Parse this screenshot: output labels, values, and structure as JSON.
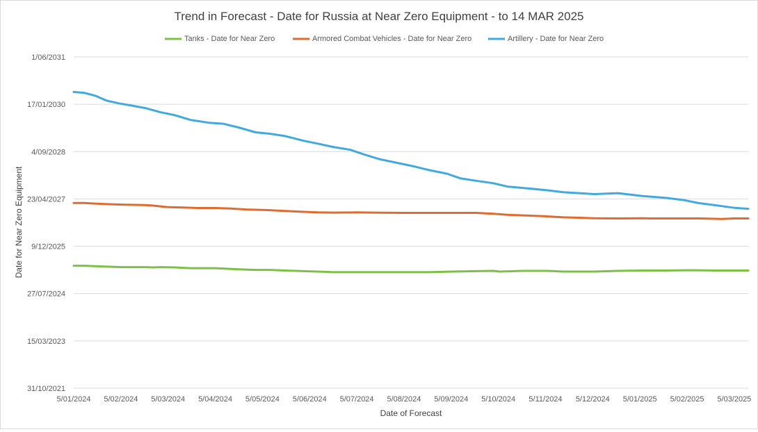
{
  "chart_data": {
    "type": "line",
    "title": "Trend in Forecast - Date for Russia at Near Zero Equipment - to 14 MAR 2025",
    "xlabel": "Date of Forecast",
    "ylabel": "Date for Near Zero Equipment",
    "legend_position": "top",
    "grid": true,
    "x_ticks": [
      "5/01/2024",
      "5/02/2024",
      "5/03/2024",
      "5/04/2024",
      "5/05/2024",
      "5/06/2024",
      "5/07/2024",
      "5/08/2024",
      "5/09/2024",
      "5/10/2024",
      "5/11/2024",
      "5/12/2024",
      "5/01/2025",
      "5/02/2025",
      "5/03/2025"
    ],
    "y_ticks": [
      "31/10/2021",
      "15/03/2023",
      "27/07/2024",
      "9/12/2025",
      "23/04/2027",
      "4/09/2028",
      "17/01/2030",
      "1/06/2031"
    ],
    "xlim": [
      "2024-01-05",
      "2025-03-14"
    ],
    "ylim": [
      "2021-10-31",
      "2031-06-01"
    ],
    "series": [
      {
        "name": "Tanks - Date for Near Zero",
        "color": "#7CC045",
        "points": [
          [
            "2024-01-05",
            "2025-05-17"
          ],
          [
            "2024-01-12",
            "2025-05-17"
          ],
          [
            "2024-01-26",
            "2025-05-08"
          ],
          [
            "2024-02-05",
            "2025-05-03"
          ],
          [
            "2024-02-20",
            "2025-05-03"
          ],
          [
            "2024-02-25",
            "2025-04-30"
          ],
          [
            "2024-03-01",
            "2025-05-03"
          ],
          [
            "2024-03-10",
            "2025-04-30"
          ],
          [
            "2024-03-20",
            "2025-04-22"
          ],
          [
            "2024-04-05",
            "2025-04-22"
          ],
          [
            "2024-04-20",
            "2025-04-10"
          ],
          [
            "2024-05-01",
            "2025-04-03"
          ],
          [
            "2024-05-10",
            "2025-04-03"
          ],
          [
            "2024-05-20",
            "2025-03-28"
          ],
          [
            "2024-06-01",
            "2025-03-21"
          ],
          [
            "2024-06-15",
            "2025-03-14"
          ],
          [
            "2024-06-20",
            "2025-03-10"
          ],
          [
            "2024-07-05",
            "2025-03-10"
          ],
          [
            "2024-07-20",
            "2025-03-10"
          ],
          [
            "2024-08-05",
            "2025-03-10"
          ],
          [
            "2024-08-20",
            "2025-03-10"
          ],
          [
            "2024-09-05",
            "2025-03-17"
          ],
          [
            "2024-09-20",
            "2025-03-21"
          ],
          [
            "2024-10-01",
            "2025-03-24"
          ],
          [
            "2024-10-05",
            "2025-03-17"
          ],
          [
            "2024-10-20",
            "2025-03-24"
          ],
          [
            "2024-11-05",
            "2025-03-24"
          ],
          [
            "2024-11-15",
            "2025-03-17"
          ],
          [
            "2024-12-05",
            "2025-03-17"
          ],
          [
            "2024-12-20",
            "2025-03-24"
          ],
          [
            "2025-01-05",
            "2025-03-28"
          ],
          [
            "2025-01-20",
            "2025-03-28"
          ],
          [
            "2025-02-01",
            "2025-03-31"
          ],
          [
            "2025-02-10",
            "2025-03-31"
          ],
          [
            "2025-02-20",
            "2025-03-28"
          ],
          [
            "2025-03-14",
            "2025-03-28"
          ]
        ]
      },
      {
        "name": "Armored Combat Vehicles - Date for Near Zero",
        "color": "#E06B2E",
        "points": [
          [
            "2024-01-05",
            "2027-03-11"
          ],
          [
            "2024-01-12",
            "2027-03-11"
          ],
          [
            "2024-01-26",
            "2027-02-27"
          ],
          [
            "2024-02-05",
            "2027-02-22"
          ],
          [
            "2024-02-20",
            "2027-02-17"
          ],
          [
            "2024-02-25",
            "2027-02-12"
          ],
          [
            "2024-03-05",
            "2027-01-27"
          ],
          [
            "2024-03-15",
            "2027-01-22"
          ],
          [
            "2024-03-25",
            "2027-01-17"
          ],
          [
            "2024-04-05",
            "2027-01-17"
          ],
          [
            "2024-04-15",
            "2027-01-12"
          ],
          [
            "2024-04-25",
            "2027-01-02"
          ],
          [
            "2024-05-05",
            "2026-12-28"
          ],
          [
            "2024-05-10",
            "2026-12-25"
          ],
          [
            "2024-05-20",
            "2026-12-17"
          ],
          [
            "2024-06-01",
            "2026-12-08"
          ],
          [
            "2024-06-10",
            "2026-12-02"
          ],
          [
            "2024-06-20",
            "2026-11-30"
          ],
          [
            "2024-07-05",
            "2026-12-02"
          ],
          [
            "2024-07-15",
            "2026-11-30"
          ],
          [
            "2024-08-05",
            "2026-11-27"
          ],
          [
            "2024-08-20",
            "2026-11-27"
          ],
          [
            "2024-09-05",
            "2026-11-27"
          ],
          [
            "2024-09-20",
            "2026-11-27"
          ],
          [
            "2024-10-01",
            "2026-11-17"
          ],
          [
            "2024-10-10",
            "2026-11-07"
          ],
          [
            "2024-10-20",
            "2026-10-31"
          ],
          [
            "2024-11-01",
            "2026-10-24"
          ],
          [
            "2024-11-15",
            "2026-10-11"
          ],
          [
            "2024-11-25",
            "2026-10-06"
          ],
          [
            "2024-12-05",
            "2026-10-01"
          ],
          [
            "2024-12-20",
            "2026-09-29"
          ],
          [
            "2025-01-05",
            "2026-10-01"
          ],
          [
            "2025-01-10",
            "2026-09-29"
          ],
          [
            "2025-01-25",
            "2026-09-29"
          ],
          [
            "2025-02-10",
            "2026-09-29"
          ],
          [
            "2025-02-25",
            "2026-09-24"
          ],
          [
            "2025-03-05",
            "2026-09-29"
          ],
          [
            "2025-03-14",
            "2026-09-29"
          ]
        ]
      },
      {
        "name": "Artillery - Date for Near Zero",
        "color": "#3FA9E0",
        "points": [
          [
            "2024-01-05",
            "2030-05-27"
          ],
          [
            "2024-01-12",
            "2030-05-17"
          ],
          [
            "2024-01-19",
            "2030-04-17"
          ],
          [
            "2024-01-26",
            "2030-02-26"
          ],
          [
            "2024-02-03",
            "2030-01-27"
          ],
          [
            "2024-02-10",
            "2030-01-07"
          ],
          [
            "2024-02-20",
            "2029-12-08"
          ],
          [
            "2024-03-01",
            "2029-10-24"
          ],
          [
            "2024-03-10",
            "2029-09-24"
          ],
          [
            "2024-03-20",
            "2029-08-05"
          ],
          [
            "2024-04-01",
            "2029-07-06"
          ],
          [
            "2024-04-10",
            "2029-06-26"
          ],
          [
            "2024-04-20",
            "2029-05-17"
          ],
          [
            "2024-05-01",
            "2029-03-27"
          ],
          [
            "2024-05-10",
            "2029-03-12"
          ],
          [
            "2024-05-20",
            "2029-02-15"
          ],
          [
            "2024-06-01",
            "2028-12-27"
          ],
          [
            "2024-06-10",
            "2028-11-27"
          ],
          [
            "2024-06-20",
            "2028-10-23"
          ],
          [
            "2024-07-01",
            "2028-09-23"
          ],
          [
            "2024-07-10",
            "2028-08-04"
          ],
          [
            "2024-07-20",
            "2028-06-15"
          ],
          [
            "2024-08-01",
            "2028-05-05"
          ],
          [
            "2024-08-10",
            "2028-04-04"
          ],
          [
            "2024-08-20",
            "2028-02-24"
          ],
          [
            "2024-09-01",
            "2028-01-15"
          ],
          [
            "2024-09-10",
            "2027-11-26"
          ],
          [
            "2024-09-20",
            "2027-11-01"
          ],
          [
            "2024-10-01",
            "2027-10-06"
          ],
          [
            "2024-10-10",
            "2027-09-01"
          ],
          [
            "2024-10-20",
            "2027-08-17"
          ],
          [
            "2024-11-05",
            "2027-07-23"
          ],
          [
            "2024-11-15",
            "2027-07-03"
          ],
          [
            "2024-12-05",
            "2027-06-13"
          ],
          [
            "2024-12-20",
            "2027-06-23"
          ],
          [
            "2025-01-05",
            "2027-05-24"
          ],
          [
            "2025-01-20",
            "2027-05-04"
          ],
          [
            "2025-02-01",
            "2027-04-09"
          ],
          [
            "2025-02-10",
            "2027-03-10"
          ],
          [
            "2025-02-20",
            "2027-02-18"
          ],
          [
            "2025-03-05",
            "2027-01-19"
          ],
          [
            "2025-03-14",
            "2027-01-09"
          ]
        ]
      }
    ]
  }
}
